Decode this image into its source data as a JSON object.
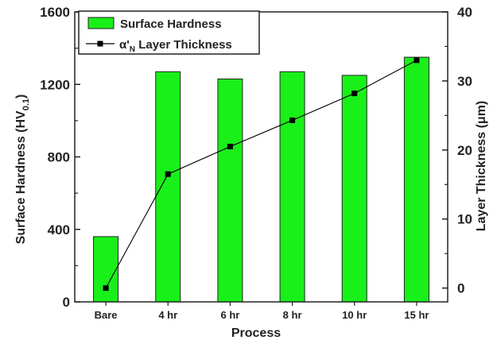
{
  "chart_data": {
    "type": "bar",
    "categories": [
      "Bare",
      "4 hr",
      "6 hr",
      "8 hr",
      "10 hr",
      "15 hr"
    ],
    "xlabel": "Process",
    "ylabel_left_main": "Surface Hardness (HV",
    "ylabel_left_sub": "0.1",
    "ylabel_left_close": ")",
    "ylabel_right": "Layer Thickness (μm)",
    "left_axis": {
      "range": [
        0,
        1600
      ],
      "ticks": [
        0,
        400,
        800,
        1200,
        1600
      ]
    },
    "right_axis": {
      "range": [
        -2,
        40
      ],
      "ticks": [
        0,
        10,
        20,
        30,
        40
      ]
    },
    "legend_position": "top-left",
    "series": [
      {
        "name": "Surface Hardness",
        "kind": "bar",
        "axis": "left",
        "color": "#19f019",
        "values": [
          360,
          1270,
          1230,
          1270,
          1250,
          1350
        ]
      },
      {
        "name_symbol": "α'",
        "name_subscript": "N",
        "name_rest": " Layer Thickness",
        "kind": "line",
        "axis": "right",
        "color": "#000000",
        "values": [
          0,
          16.5,
          20.5,
          24.3,
          28.2,
          33
        ]
      }
    ]
  }
}
